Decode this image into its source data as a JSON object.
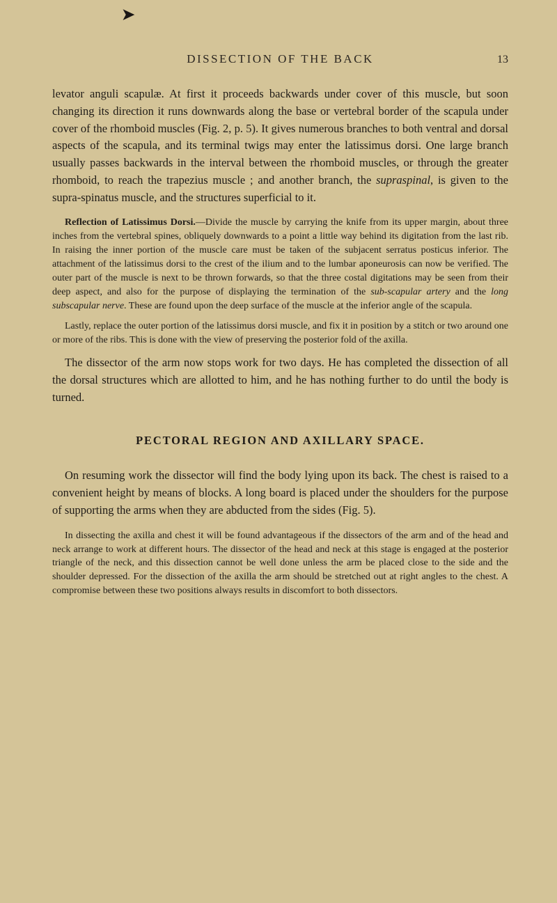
{
  "page": {
    "marker": "➤",
    "running_head": "DISSECTION OF THE BACK",
    "page_number": "13"
  },
  "paragraphs": {
    "p1": "levator anguli scapulæ. At first it proceeds backwards under cover of this muscle, but soon changing its direction it runs downwards along the base or vertebral border of the scapula under cover of the rhomboid muscles (Fig. 2, p. 5). It gives numerous branches to both ventral and dorsal aspects of the scapula, and its terminal twigs may enter the latissimus dorsi. One large branch usually passes backwards in the interval between the rhomboid muscles, or through the greater rhomboid, to reach the trapezius muscle ; and another branch, the ",
    "p1_italic": "supraspinal",
    "p1_cont": ", is given to the supra-spinatus muscle, and the structures superficial to it.",
    "p2_bold": "Reflection of Latissimus Dorsi.",
    "p2": "—Divide the muscle by carrying the knife from its upper margin, about three inches from the vertebral spines, obliquely downwards to a point a little way behind its digitation from the last rib. In raising the inner portion of the muscle care must be taken of the subjacent serratus posticus inferior. The attachment of the latissimus dorsi to the crest of the ilium and to the lumbar aponeurosis can now be verified. The outer part of the muscle is next to be thrown forwards, so that the three costal digitations may be seen from their deep aspect, and also for the purpose of displaying the termination of the ",
    "p2_italic1": "sub-scapular artery",
    "p2_mid": " and the ",
    "p2_italic2": "long subscapular nerve",
    "p2_cont": ". These are found upon the deep surface of the muscle at the inferior angle of the scapula.",
    "p3": "Lastly, replace the outer portion of the latissimus dorsi muscle, and fix it in position by a stitch or two around one or more of the ribs. This is done with the view of preserving the posterior fold of the axilla.",
    "p4": "The dissector of the arm now stops work for two days. He has completed the dissection of all the dorsal structures which are allotted to him, and he has nothing further to do until the body is turned.",
    "section_heading": "PECTORAL REGION AND AXILLARY SPACE.",
    "p5": "On resuming work the dissector will find the body lying upon its back. The chest is raised to a convenient height by means of blocks. A long board is placed under the shoulders for the purpose of supporting the arms when they are abducted from the sides (Fig. 5).",
    "p6": "In dissecting the axilla and chest it will be found advantageous if the dissectors of the arm and of the head and neck arrange to work at different hours. The dissector of the head and neck at this stage is engaged at the posterior triangle of the neck, and this dissection cannot be well done unless the arm be placed close to the side and the shoulder depressed. For the dissection of the axilla the arm should be stretched out at right angles to the chest. A compromise between these two positions always results in discomfort to both dissectors."
  }
}
